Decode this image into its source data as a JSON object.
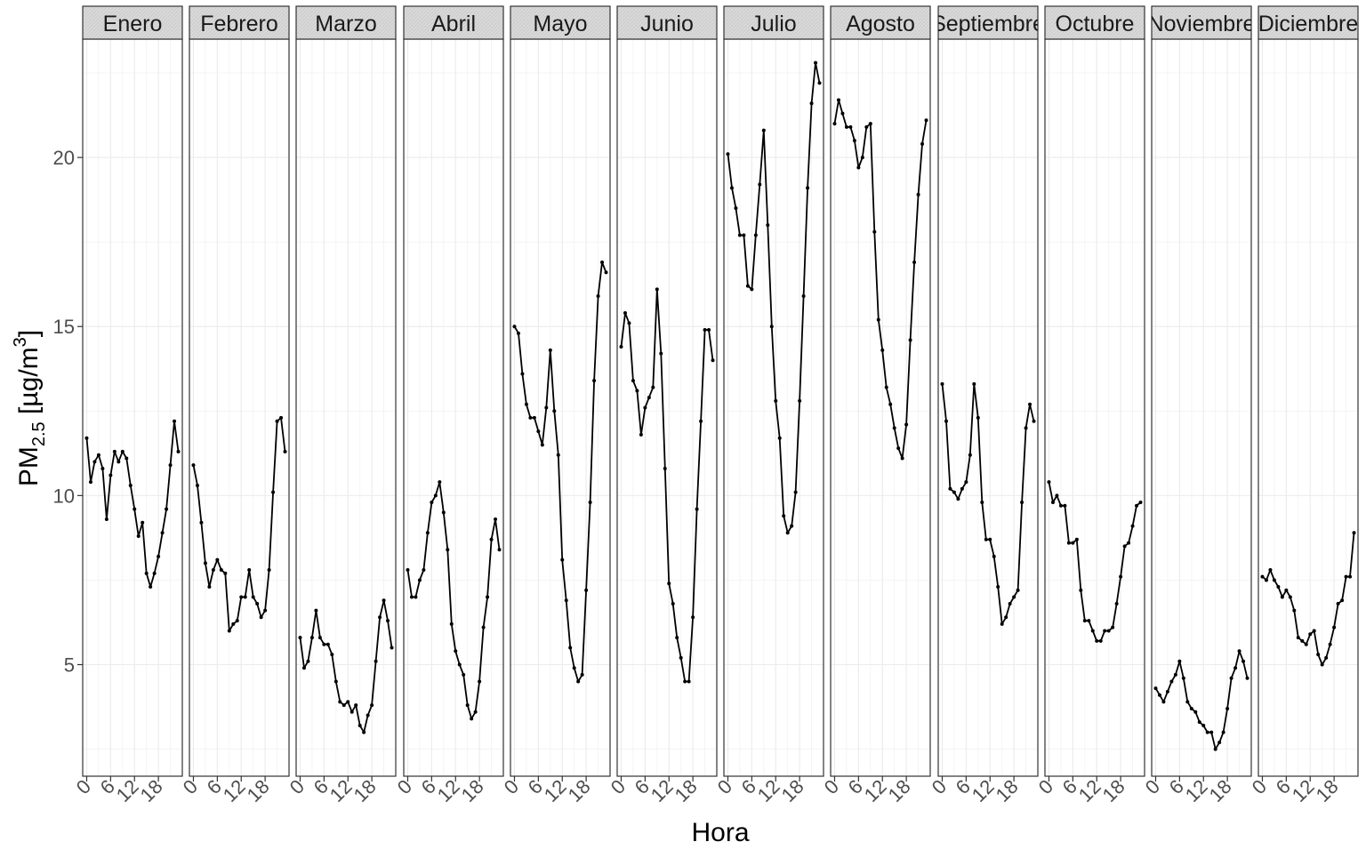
{
  "chart_data": {
    "type": "line",
    "facet_by": "month",
    "xlabel": "Hora",
    "ylabel_main": "PM",
    "ylabel_sub": "2.5",
    "ylabel_unit_pre": " [µg/m",
    "ylabel_sup": "3",
    "ylabel_unit_post": "]",
    "xlim": [
      -1,
      24
    ],
    "ylim": [
      1.7,
      23.5
    ],
    "x_ticks": [
      0,
      6,
      12,
      18
    ],
    "x_tick_labels": [
      "0",
      "6",
      "12",
      "18"
    ],
    "y_ticks": [
      5,
      10,
      15,
      20
    ],
    "y_tick_labels": [
      "5",
      "10",
      "15",
      "20"
    ],
    "grid": true,
    "series_color": "#000000",
    "facets": [
      {
        "label": "Enero",
        "values": [
          11.7,
          10.4,
          11.0,
          11.2,
          10.8,
          9.3,
          10.6,
          11.3,
          11.0,
          11.3,
          11.1,
          10.3,
          9.6,
          8.8,
          9.2,
          7.7,
          7.3,
          7.7,
          8.2,
          8.9,
          9.6,
          10.9,
          12.2,
          11.3
        ]
      },
      {
        "label": "Febrero",
        "values": [
          10.9,
          10.3,
          9.2,
          8.0,
          7.3,
          7.8,
          8.1,
          7.8,
          7.7,
          6.0,
          6.2,
          6.3,
          7.0,
          7.0,
          7.8,
          7.0,
          6.8,
          6.4,
          6.6,
          7.8,
          10.1,
          12.2,
          12.3,
          11.3
        ]
      },
      {
        "label": "Marzo",
        "values": [
          5.8,
          4.9,
          5.1,
          5.8,
          6.6,
          5.8,
          5.6,
          5.6,
          5.3,
          4.5,
          3.9,
          3.8,
          3.9,
          3.6,
          3.8,
          3.2,
          3.0,
          3.5,
          3.8,
          5.1,
          6.4,
          6.9,
          6.3,
          5.5
        ]
      },
      {
        "label": "Abril",
        "values": [
          7.8,
          7.0,
          7.0,
          7.5,
          7.8,
          8.9,
          9.8,
          10.0,
          10.4,
          9.5,
          8.4,
          6.2,
          5.4,
          5.0,
          4.7,
          3.8,
          3.4,
          3.6,
          4.5,
          6.1,
          7.0,
          8.7,
          9.3,
          8.4
        ]
      },
      {
        "label": "Mayo",
        "values": [
          15.0,
          14.8,
          13.6,
          12.7,
          12.3,
          12.3,
          11.9,
          11.5,
          12.6,
          14.3,
          12.5,
          11.2,
          8.1,
          6.9,
          5.5,
          4.9,
          4.5,
          4.7,
          7.2,
          9.8,
          13.4,
          15.9,
          16.9,
          16.6
        ]
      },
      {
        "label": "Junio",
        "values": [
          14.4,
          15.4,
          15.1,
          13.4,
          13.1,
          11.8,
          12.6,
          12.9,
          13.2,
          16.1,
          14.2,
          10.8,
          7.4,
          6.8,
          5.8,
          5.2,
          4.5,
          4.5,
          6.4,
          9.6,
          12.2,
          14.9,
          14.9,
          14.0
        ]
      },
      {
        "label": "Julio",
        "values": [
          20.1,
          19.1,
          18.5,
          17.7,
          17.7,
          16.2,
          16.1,
          17.7,
          19.2,
          20.8,
          18.0,
          15.0,
          12.8,
          11.7,
          9.4,
          8.9,
          9.1,
          10.1,
          12.8,
          15.9,
          19.1,
          21.6,
          22.8,
          22.2
        ]
      },
      {
        "label": "Agosto",
        "values": [
          21.0,
          21.7,
          21.3,
          20.9,
          20.9,
          20.5,
          19.7,
          20.0,
          20.9,
          21.0,
          17.8,
          15.2,
          14.3,
          13.2,
          12.7,
          12.0,
          11.4,
          11.1,
          12.1,
          14.6,
          16.9,
          18.9,
          20.4,
          21.1
        ]
      },
      {
        "label": "Septiembre",
        "values": [
          13.3,
          12.2,
          10.2,
          10.1,
          9.9,
          10.2,
          10.4,
          11.2,
          13.3,
          12.3,
          9.8,
          8.7,
          8.7,
          8.2,
          7.3,
          6.2,
          6.4,
          6.8,
          7.0,
          7.2,
          9.8,
          12.0,
          12.7,
          12.2
        ]
      },
      {
        "label": "Octubre",
        "values": [
          10.4,
          9.8,
          10.0,
          9.7,
          9.7,
          8.6,
          8.6,
          8.7,
          7.2,
          6.3,
          6.3,
          6.0,
          5.7,
          5.7,
          6.0,
          6.0,
          6.1,
          6.8,
          7.6,
          8.5,
          8.6,
          9.1,
          9.7,
          9.8
        ]
      },
      {
        "label": "Noviembre",
        "values": [
          4.3,
          4.1,
          3.9,
          4.2,
          4.5,
          4.7,
          5.1,
          4.6,
          3.9,
          3.7,
          3.6,
          3.3,
          3.2,
          3.0,
          3.0,
          2.5,
          2.7,
          3.0,
          3.7,
          4.6,
          4.9,
          5.4,
          5.1,
          4.6
        ]
      },
      {
        "label": "Diciembre",
        "values": [
          7.6,
          7.5,
          7.8,
          7.5,
          7.3,
          7.0,
          7.2,
          7.0,
          6.6,
          5.8,
          5.7,
          5.6,
          5.9,
          6.0,
          5.3,
          5.0,
          5.2,
          5.6,
          6.1,
          6.8,
          6.9,
          7.6,
          7.6,
          8.9
        ]
      }
    ]
  }
}
